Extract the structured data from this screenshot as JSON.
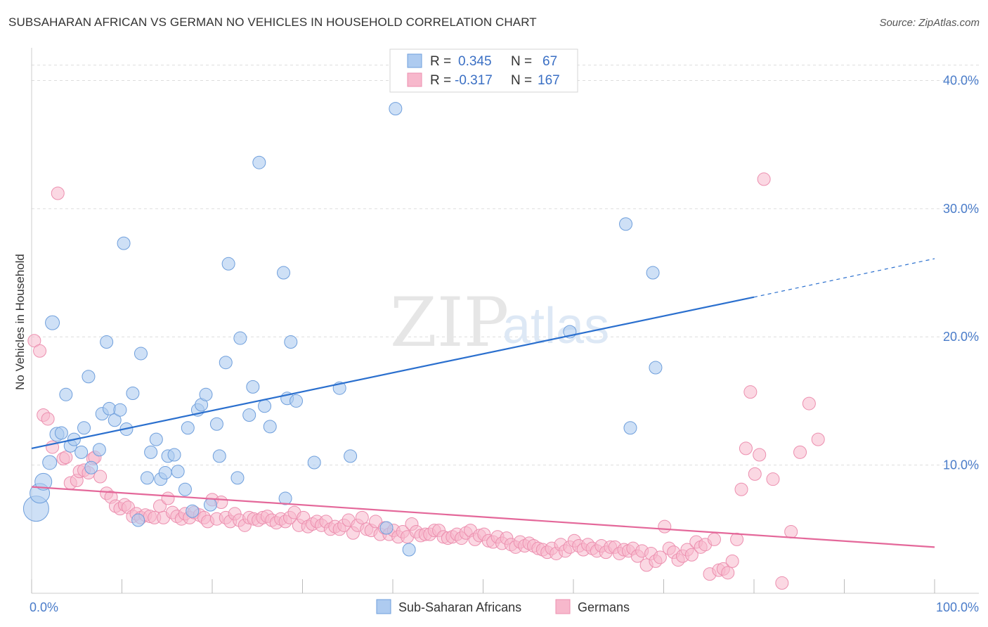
{
  "header": {
    "title": "SUBSAHARAN AFRICAN VS GERMAN NO VEHICLES IN HOUSEHOLD CORRELATION CHART",
    "source": "Source: ZipAtlas.com"
  },
  "watermark": {
    "zip": "ZIP",
    "atlas": "atlas"
  },
  "legend": {
    "rows": [
      {
        "r_label": "R =",
        "r_value": "0.345",
        "n_label": "N =",
        "n_value": "67"
      },
      {
        "r_label": "R =",
        "r_value": "-0.317",
        "n_label": "N =",
        "n_value": "167"
      }
    ]
  },
  "bottom_legend": {
    "items": [
      {
        "label": "Sub-Saharan Africans"
      },
      {
        "label": "Germans"
      }
    ]
  },
  "colors": {
    "blue_fill": "#aecbf0",
    "blue_stroke": "#6f9fdc",
    "blue_line": "#2a6fce",
    "pink_fill": "#f7b8cc",
    "pink_stroke": "#ec8faf",
    "pink_line": "#e4689a",
    "grid": "#dddddd",
    "axis_text": "#4a7cc9"
  },
  "chart_data": {
    "type": "scatter",
    "title": "SUBSAHARAN AFRICAN VS GERMAN NO VEHICLES IN HOUSEHOLD CORRELATION CHART",
    "xlabel": "",
    "ylabel": "No Vehicles in Household",
    "xlim": [
      0,
      100
    ],
    "ylim": [
      0,
      42
    ],
    "x_tick_labels": [
      "0.0%",
      "100.0%"
    ],
    "y_ticks": [
      10,
      20,
      30,
      40
    ],
    "y_tick_labels": [
      "10.0%",
      "20.0%",
      "30.0%",
      "40.0%"
    ],
    "grid": "horizontal dashed",
    "legend_position": "top-center",
    "series": [
      {
        "name": "Sub-Saharan Africans",
        "r": 0.345,
        "n": 67,
        "trend": {
          "x0": 0,
          "y0": 11.3,
          "x1": 80,
          "y1": 23.1,
          "dashed_to_x": 100,
          "dashed_to_y": 26.1
        },
        "points": [
          [
            0.5,
            6.6,
            18
          ],
          [
            0.9,
            7.8,
            14
          ],
          [
            1.3,
            8.7,
            12
          ],
          [
            2.0,
            10.2,
            10
          ],
          [
            2.3,
            21.1,
            10
          ],
          [
            2.8,
            12.4,
            10
          ],
          [
            3.3,
            12.5,
            9
          ],
          [
            3.8,
            15.5,
            9
          ],
          [
            4.3,
            11.5,
            9
          ],
          [
            4.7,
            12.0,
            9
          ],
          [
            5.5,
            11.0,
            9
          ],
          [
            5.8,
            12.9,
            9
          ],
          [
            6.3,
            16.9,
            9
          ],
          [
            6.6,
            9.8,
            9
          ],
          [
            7.5,
            11.2,
            9
          ],
          [
            7.8,
            14.0,
            9
          ],
          [
            8.3,
            19.6,
            9
          ],
          [
            8.6,
            14.4,
            9
          ],
          [
            9.2,
            13.5,
            9
          ],
          [
            9.8,
            14.3,
            9
          ],
          [
            10.2,
            27.3,
            9
          ],
          [
            10.5,
            12.8,
            9
          ],
          [
            11.2,
            15.6,
            9
          ],
          [
            11.8,
            5.7,
            9
          ],
          [
            12.1,
            18.7,
            9
          ],
          [
            12.8,
            9.0,
            9
          ],
          [
            13.2,
            11.0,
            9
          ],
          [
            13.8,
            12.0,
            9
          ],
          [
            14.3,
            8.9,
            9
          ],
          [
            14.8,
            9.4,
            9
          ],
          [
            15.1,
            10.7,
            9
          ],
          [
            15.8,
            10.8,
            9
          ],
          [
            16.2,
            9.5,
            9
          ],
          [
            17.0,
            8.1,
            9
          ],
          [
            17.3,
            12.9,
            9
          ],
          [
            17.8,
            6.4,
            9
          ],
          [
            18.4,
            14.3,
            9
          ],
          [
            18.8,
            14.7,
            9
          ],
          [
            19.3,
            15.5,
            9
          ],
          [
            19.8,
            6.9,
            9
          ],
          [
            20.5,
            13.2,
            9
          ],
          [
            20.8,
            10.7,
            9
          ],
          [
            21.5,
            18.0,
            9
          ],
          [
            21.8,
            25.7,
            9
          ],
          [
            22.8,
            9.0,
            9
          ],
          [
            23.1,
            19.9,
            9
          ],
          [
            24.1,
            13.9,
            9
          ],
          [
            24.5,
            16.1,
            9
          ],
          [
            25.2,
            33.6,
            9
          ],
          [
            25.8,
            14.6,
            9
          ],
          [
            26.4,
            13.0,
            9
          ],
          [
            27.9,
            25.0,
            9
          ],
          [
            28.1,
            7.4,
            9
          ],
          [
            28.3,
            15.2,
            9
          ],
          [
            28.7,
            19.6,
            9
          ],
          [
            29.3,
            15.0,
            9
          ],
          [
            31.3,
            10.2,
            9
          ],
          [
            34.1,
            16.0,
            9
          ],
          [
            35.3,
            10.7,
            9
          ],
          [
            39.3,
            5.1,
            9
          ],
          [
            40.3,
            37.8,
            9
          ],
          [
            41.8,
            3.4,
            9
          ],
          [
            59.6,
            20.4,
            9
          ],
          [
            66.3,
            12.9,
            9
          ],
          [
            69.1,
            17.6,
            9
          ],
          [
            65.8,
            28.8,
            9
          ],
          [
            68.8,
            25.0,
            9
          ]
        ]
      },
      {
        "name": "Germans",
        "r": -0.317,
        "n": 167,
        "trend": {
          "x0": 0,
          "y0": 8.3,
          "x1": 100,
          "y1": 3.6
        },
        "points": [
          [
            0.3,
            19.7
          ],
          [
            0.9,
            18.9
          ],
          [
            1.3,
            13.9
          ],
          [
            1.8,
            13.6
          ],
          [
            2.3,
            11.4
          ],
          [
            2.9,
            31.2
          ],
          [
            3.5,
            10.5
          ],
          [
            3.8,
            10.6
          ],
          [
            4.3,
            8.6
          ],
          [
            5.0,
            8.8
          ],
          [
            5.3,
            9.5
          ],
          [
            5.8,
            9.6
          ],
          [
            6.3,
            9.4
          ],
          [
            6.8,
            10.5
          ],
          [
            7.0,
            10.6
          ],
          [
            7.6,
            9.1
          ],
          [
            8.3,
            7.8
          ],
          [
            8.8,
            7.5
          ],
          [
            9.3,
            6.8
          ],
          [
            9.8,
            6.6
          ],
          [
            10.3,
            6.9
          ],
          [
            10.7,
            6.7
          ],
          [
            11.2,
            6.0
          ],
          [
            11.6,
            6.2
          ],
          [
            12.1,
            5.9
          ],
          [
            12.6,
            6.1
          ],
          [
            13.1,
            6.0
          ],
          [
            13.6,
            5.9
          ],
          [
            14.2,
            6.8
          ],
          [
            14.6,
            5.9
          ],
          [
            15.1,
            7.4
          ],
          [
            15.6,
            6.3
          ],
          [
            16.1,
            6.0
          ],
          [
            16.6,
            5.8
          ],
          [
            17.0,
            6.2
          ],
          [
            17.5,
            5.9
          ],
          [
            18.0,
            6.3
          ],
          [
            18.6,
            6.1
          ],
          [
            19.1,
            5.9
          ],
          [
            19.5,
            5.6
          ],
          [
            20.0,
            7.3
          ],
          [
            20.5,
            5.8
          ],
          [
            21.0,
            7.1
          ],
          [
            21.5,
            5.9
          ],
          [
            22.0,
            5.6
          ],
          [
            22.5,
            6.2
          ],
          [
            23.0,
            5.7
          ],
          [
            23.6,
            5.3
          ],
          [
            24.1,
            5.9
          ],
          [
            24.6,
            5.8
          ],
          [
            25.1,
            5.7
          ],
          [
            25.6,
            5.9
          ],
          [
            26.1,
            6.0
          ],
          [
            26.6,
            5.7
          ],
          [
            27.1,
            5.5
          ],
          [
            27.6,
            5.8
          ],
          [
            28.1,
            5.6
          ],
          [
            28.6,
            5.9
          ],
          [
            29.1,
            6.3
          ],
          [
            29.6,
            5.3
          ],
          [
            30.1,
            5.9
          ],
          [
            30.6,
            5.2
          ],
          [
            31.1,
            5.4
          ],
          [
            31.6,
            5.6
          ],
          [
            32.1,
            5.3
          ],
          [
            32.6,
            5.6
          ],
          [
            33.1,
            5.0
          ],
          [
            33.6,
            5.2
          ],
          [
            34.1,
            5.0
          ],
          [
            34.6,
            5.3
          ],
          [
            35.1,
            5.7
          ],
          [
            35.6,
            4.7
          ],
          [
            36.1,
            5.3
          ],
          [
            36.6,
            5.9
          ],
          [
            37.1,
            5.0
          ],
          [
            37.6,
            4.9
          ],
          [
            38.1,
            5.6
          ],
          [
            38.6,
            4.6
          ],
          [
            39.1,
            5.1
          ],
          [
            39.6,
            4.6
          ],
          [
            40.1,
            4.9
          ],
          [
            40.6,
            4.4
          ],
          [
            41.1,
            4.8
          ],
          [
            41.6,
            4.4
          ],
          [
            42.1,
            5.4
          ],
          [
            42.6,
            4.8
          ],
          [
            43.1,
            4.5
          ],
          [
            43.6,
            4.6
          ],
          [
            44.1,
            4.6
          ],
          [
            44.6,
            4.9
          ],
          [
            45.1,
            4.9
          ],
          [
            45.6,
            4.4
          ],
          [
            46.1,
            4.3
          ],
          [
            46.6,
            4.4
          ],
          [
            47.1,
            4.6
          ],
          [
            47.6,
            4.3
          ],
          [
            48.1,
            4.7
          ],
          [
            48.6,
            4.9
          ],
          [
            49.1,
            4.2
          ],
          [
            49.6,
            4.5
          ],
          [
            50.1,
            4.6
          ],
          [
            50.6,
            4.1
          ],
          [
            51.1,
            4.0
          ],
          [
            51.6,
            4.4
          ],
          [
            52.1,
            3.9
          ],
          [
            52.6,
            4.3
          ],
          [
            53.1,
            3.8
          ],
          [
            53.6,
            3.6
          ],
          [
            54.1,
            4.0
          ],
          [
            54.6,
            3.7
          ],
          [
            55.1,
            3.9
          ],
          [
            55.6,
            3.7
          ],
          [
            56.1,
            3.5
          ],
          [
            56.6,
            3.4
          ],
          [
            57.1,
            3.2
          ],
          [
            57.6,
            3.5
          ],
          [
            58.1,
            3.1
          ],
          [
            58.6,
            3.8
          ],
          [
            59.1,
            3.3
          ],
          [
            59.6,
            3.6
          ],
          [
            60.1,
            4.1
          ],
          [
            60.6,
            3.7
          ],
          [
            61.1,
            3.4
          ],
          [
            61.6,
            3.8
          ],
          [
            62.1,
            3.5
          ],
          [
            62.6,
            3.3
          ],
          [
            63.1,
            3.7
          ],
          [
            63.6,
            3.2
          ],
          [
            64.1,
            3.6
          ],
          [
            64.6,
            3.6
          ],
          [
            65.1,
            3.1
          ],
          [
            65.6,
            3.4
          ],
          [
            66.1,
            3.3
          ],
          [
            66.6,
            3.5
          ],
          [
            67.1,
            2.9
          ],
          [
            67.6,
            3.3
          ],
          [
            68.1,
            2.2
          ],
          [
            68.6,
            3.1
          ],
          [
            69.1,
            2.5
          ],
          [
            69.6,
            2.8
          ],
          [
            70.1,
            5.2
          ],
          [
            70.6,
            3.5
          ],
          [
            71.1,
            3.2
          ],
          [
            71.6,
            2.6
          ],
          [
            72.1,
            2.9
          ],
          [
            72.6,
            3.4
          ],
          [
            73.1,
            3.0
          ],
          [
            73.6,
            4.0
          ],
          [
            74.1,
            3.6
          ],
          [
            74.6,
            3.8
          ],
          [
            75.1,
            1.5
          ],
          [
            75.6,
            4.2
          ],
          [
            76.1,
            1.8
          ],
          [
            76.6,
            1.9
          ],
          [
            77.1,
            1.6
          ],
          [
            77.6,
            2.5
          ],
          [
            78.1,
            4.2
          ],
          [
            78.6,
            8.1
          ],
          [
            79.1,
            11.3
          ],
          [
            79.6,
            15.7
          ],
          [
            80.1,
            9.3
          ],
          [
            80.6,
            10.8
          ],
          [
            81.1,
            32.3
          ],
          [
            82.1,
            8.9
          ],
          [
            83.1,
            0.8
          ],
          [
            84.1,
            4.8
          ],
          [
            85.1,
            11.0
          ],
          [
            86.1,
            14.8
          ],
          [
            87.1,
            12.0
          ]
        ]
      }
    ]
  }
}
